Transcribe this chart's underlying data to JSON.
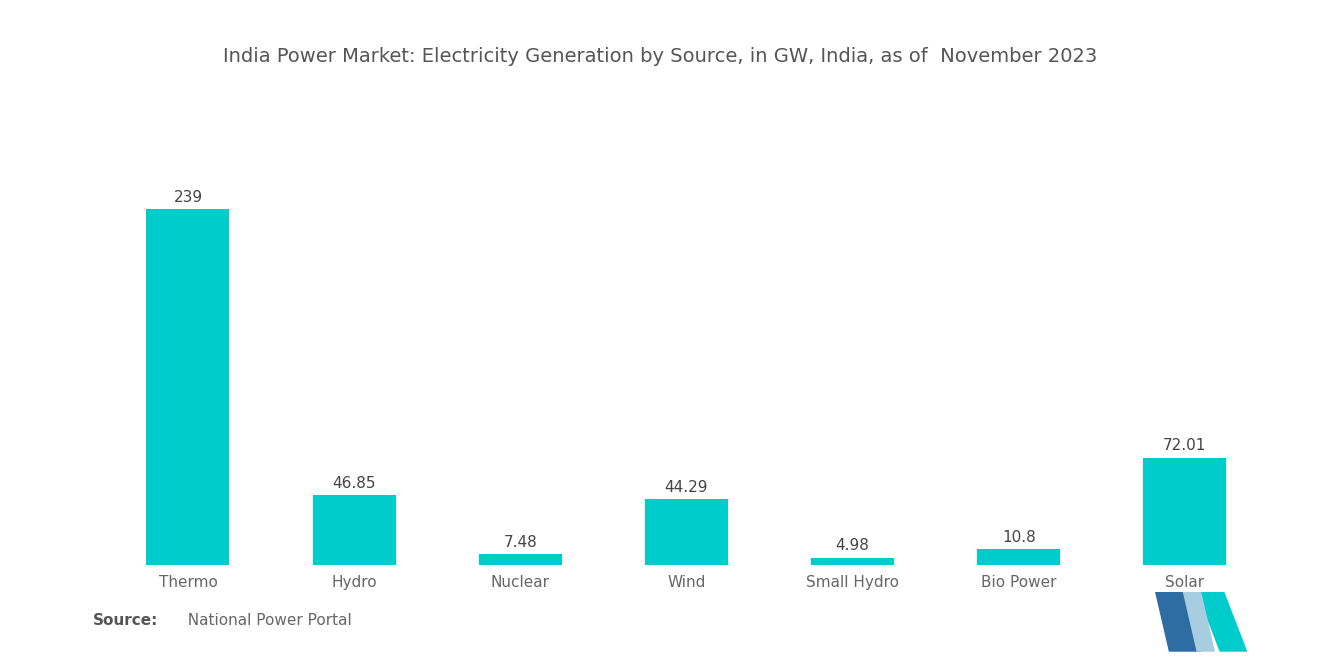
{
  "title": "India Power Market: Electricity Generation by Source, in GW, India, as of  November 2023",
  "categories": [
    "Thermo",
    "Hydro",
    "Nuclear",
    "Wind",
    "Small Hydro",
    "Bio Power",
    "Solar"
  ],
  "values": [
    239,
    46.85,
    7.48,
    44.29,
    4.98,
    10.8,
    72.01
  ],
  "bar_color": "#00CCCC",
  "value_labels": [
    "239",
    "46.85",
    "7.48",
    "44.29",
    "4.98",
    "10.8",
    "72.01"
  ],
  "source_bold": "Source:",
  "source_text": "  National Power Portal",
  "background_color": "#ffffff",
  "title_fontsize": 14,
  "label_fontsize": 11,
  "value_fontsize": 11,
  "source_fontsize": 11,
  "ylim": [
    0,
    290
  ],
  "logo_color1": "#2e6da4",
  "logo_color2": "#00CCCC"
}
